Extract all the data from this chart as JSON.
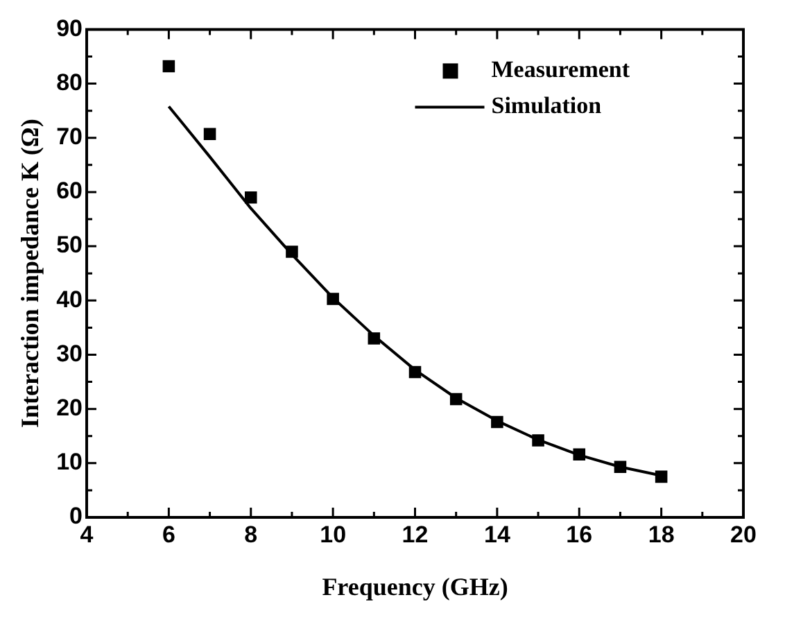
{
  "chart_data": {
    "type": "scatter",
    "xlabel": "Frequency (GHz)",
    "ylabel": "Interaction impedance K (Ω)",
    "xlim": [
      4,
      20
    ],
    "xticks": [
      4,
      6,
      8,
      10,
      12,
      14,
      16,
      18,
      20
    ],
    "ylim": [
      0,
      90
    ],
    "yticks": [
      0,
      10,
      20,
      30,
      40,
      50,
      60,
      70,
      80,
      90
    ],
    "grid": false,
    "legend": "top right",
    "series": [
      {
        "name": "Measurement",
        "marker": "square",
        "color": "#000000",
        "x": [
          6,
          7,
          8,
          9,
          10,
          11,
          12,
          13,
          14,
          15,
          16,
          17,
          18
        ],
        "values": [
          83.2,
          70.7,
          59.0,
          49.0,
          40.3,
          33.0,
          26.8,
          21.8,
          17.6,
          14.2,
          11.6,
          9.3,
          7.5
        ]
      },
      {
        "name": "Simulation",
        "type": "line",
        "marker": "none",
        "line_style": "solid",
        "color": "#000000",
        "x": [
          6,
          7,
          8,
          9,
          10,
          11,
          12,
          13,
          14,
          15,
          16,
          17,
          18
        ],
        "values": [
          75.8,
          66.5,
          57.0,
          48.5,
          40.5,
          33.5,
          27.2,
          22.0,
          17.8,
          14.3,
          11.5,
          9.3,
          7.7
        ]
      }
    ]
  }
}
